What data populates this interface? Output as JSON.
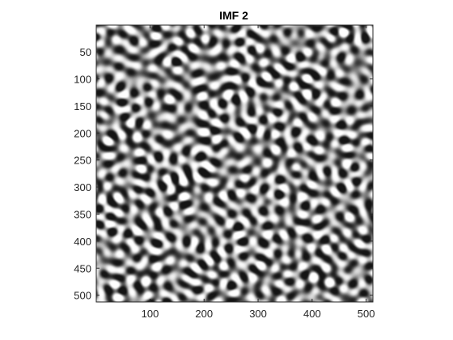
{
  "chart_data": {
    "type": "heatmap",
    "title": "IMF 2",
    "xlabel": "",
    "ylabel": "",
    "xlim": [
      0.5,
      512.5
    ],
    "ylim": [
      0.5,
      512.5
    ],
    "y_direction": "reverse",
    "colormap": "gray",
    "image_size": [
      512,
      512
    ],
    "x_ticks": [
      100,
      200,
      300,
      400,
      500
    ],
    "x_tick_labels": [
      "100",
      "200",
      "300",
      "400",
      "500"
    ],
    "y_ticks": [
      50,
      100,
      150,
      200,
      250,
      300,
      350,
      400,
      450,
      500
    ],
    "y_tick_labels": [
      "50",
      "100",
      "150",
      "200",
      "250",
      "300",
      "350",
      "400",
      "450",
      "500"
    ],
    "grid": false,
    "legend": "none",
    "colors": {
      "axis": "#262626",
      "background": "#ffffff",
      "title": "#000000"
    }
  }
}
